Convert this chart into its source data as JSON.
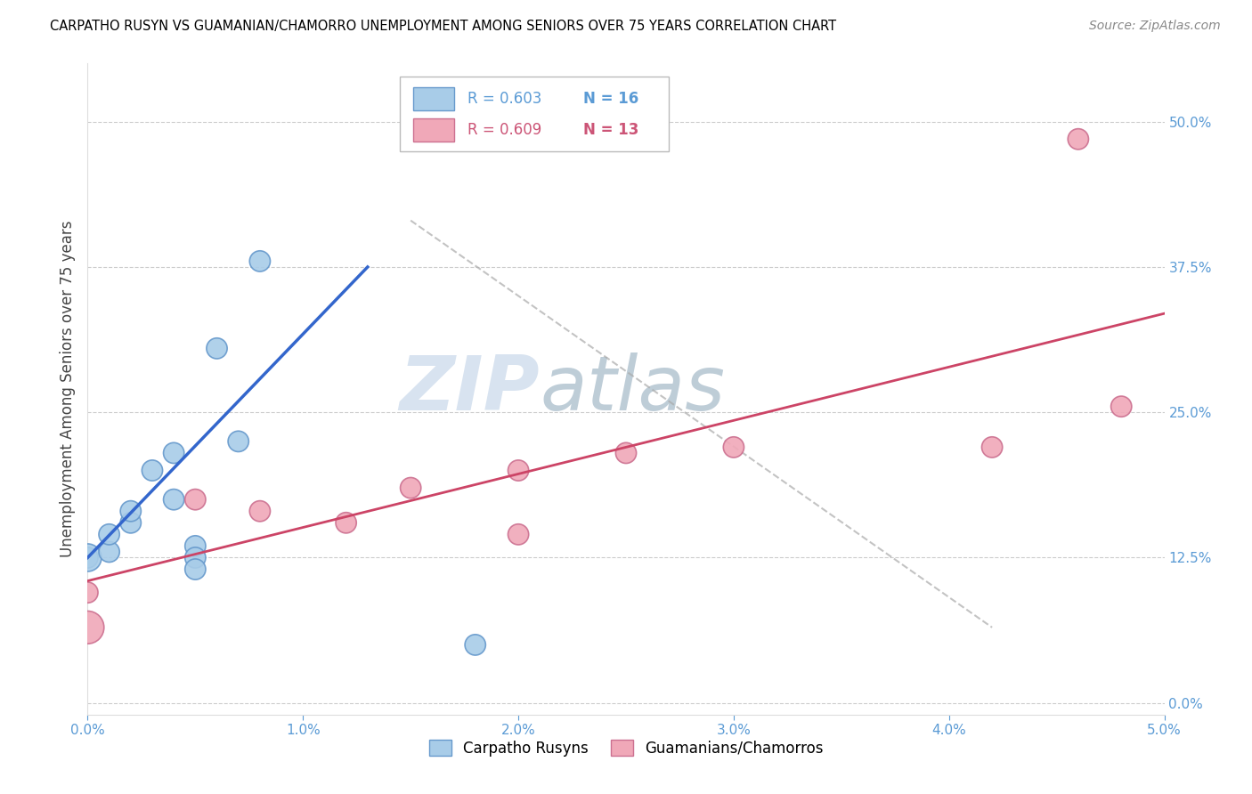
{
  "title": "CARPATHO RUSYN VS GUAMANIAN/CHAMORRO UNEMPLOYMENT AMONG SENIORS OVER 75 YEARS CORRELATION CHART",
  "source": "Source: ZipAtlas.com",
  "ylabel": "Unemployment Among Seniors over 75 years",
  "xlim": [
    0.0,
    0.05
  ],
  "ylim": [
    -0.01,
    0.55
  ],
  "right_yticks": [
    0.0,
    0.125,
    0.25,
    0.375,
    0.5
  ],
  "right_yticklabels": [
    "0.0%",
    "12.5%",
    "25.0%",
    "37.5%",
    "50.0%"
  ],
  "xticks": [
    0.0,
    0.01,
    0.02,
    0.03,
    0.04,
    0.05
  ],
  "xticklabels": [
    "0.0%",
    "1.0%",
    "2.0%",
    "3.0%",
    "4.0%",
    "5.0%"
  ],
  "blue_color": "#A8CCE8",
  "blue_edge_color": "#6699CC",
  "pink_color": "#F0A8B8",
  "pink_edge_color": "#CC7090",
  "blue_line_color": "#3366CC",
  "pink_line_color": "#CC4466",
  "legend_label_blue": "Carpatho Rusyns",
  "legend_label_pink": "Guamanians/Chamorros",
  "watermark_zip": "ZIP",
  "watermark_atlas": "atlas",
  "blue_scatter_x": [
    0.0,
    0.0,
    0.001,
    0.001,
    0.002,
    0.002,
    0.003,
    0.004,
    0.004,
    0.005,
    0.005,
    0.005,
    0.006,
    0.007,
    0.008,
    0.018
  ],
  "blue_scatter_y": [
    0.125,
    0.125,
    0.13,
    0.145,
    0.155,
    0.165,
    0.2,
    0.175,
    0.215,
    0.135,
    0.125,
    0.115,
    0.305,
    0.225,
    0.38,
    0.05
  ],
  "blue_sizes": [
    280,
    500,
    280,
    280,
    280,
    280,
    280,
    280,
    280,
    280,
    280,
    280,
    280,
    280,
    280,
    280
  ],
  "pink_scatter_x": [
    0.0,
    0.0,
    0.005,
    0.008,
    0.012,
    0.015,
    0.02,
    0.02,
    0.025,
    0.03,
    0.042,
    0.046,
    0.048
  ],
  "pink_scatter_y": [
    0.065,
    0.095,
    0.175,
    0.165,
    0.155,
    0.185,
    0.2,
    0.145,
    0.215,
    0.22,
    0.22,
    0.485,
    0.255
  ],
  "pink_sizes": [
    700,
    280,
    280,
    280,
    280,
    280,
    280,
    280,
    280,
    280,
    280,
    280,
    280
  ],
  "blue_trendline_x": [
    0.0,
    0.013
  ],
  "blue_trendline_y": [
    0.125,
    0.375
  ],
  "pink_trendline_x": [
    0.0,
    0.05
  ],
  "pink_trendline_y": [
    0.105,
    0.335
  ],
  "dashed_line_x": [
    0.015,
    0.042
  ],
  "dashed_line_y": [
    0.415,
    0.065
  ],
  "grid_color": "#CCCCCC",
  "tick_color": "#5B9BD5"
}
